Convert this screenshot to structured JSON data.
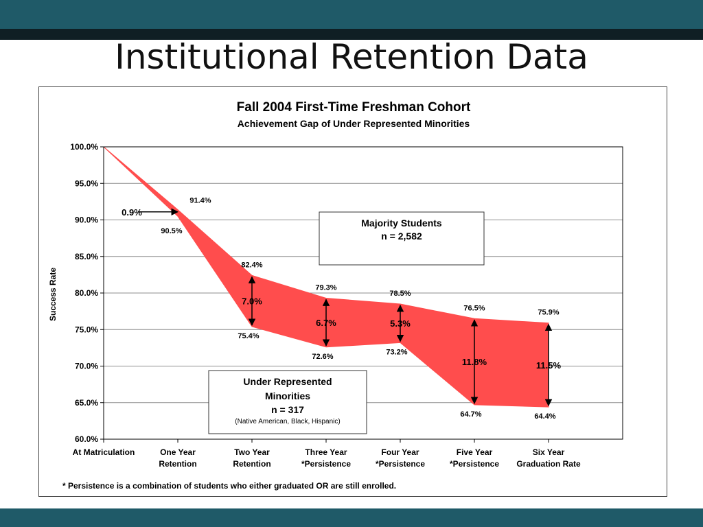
{
  "slide": {
    "title": "Institutional Retention Data",
    "colors": {
      "band": "#1f5a68",
      "rule": "#0f1f24",
      "gap_fill": "#ff4d4d"
    }
  },
  "chart_data": {
    "type": "area",
    "title": "Fall 2004 First-Time Freshman Cohort",
    "subtitle": "Achievement Gap of Under Represented Minorities",
    "ylabel": "Success Rate",
    "xlabel": "",
    "ylim": [
      60,
      100
    ],
    "y_ticks": [
      "60.0%",
      "65.0%",
      "70.0%",
      "75.0%",
      "80.0%",
      "85.0%",
      "90.0%",
      "95.0%",
      "100.0%"
    ],
    "categories": [
      [
        "At Matriculation",
        ""
      ],
      [
        "One Year",
        "Retention"
      ],
      [
        "Two Year",
        "Retention"
      ],
      [
        "Three Year",
        "*Persistence"
      ],
      [
        "Four Year",
        "*Persistence"
      ],
      [
        "Five Year",
        "*Persistence"
      ],
      [
        "Six Year",
        "Graduation Rate"
      ]
    ],
    "series": [
      {
        "values": [
          100.0,
          91.4,
          82.4,
          79.3,
          78.5,
          76.5,
          75.9
        ],
        "labels": [
          "",
          "91.4%",
          "82.4%",
          "79.3%",
          "78.5%",
          "76.5%",
          "75.9%"
        ]
      },
      {
        "values": [
          100.0,
          90.5,
          75.4,
          72.6,
          73.2,
          64.7,
          64.4
        ],
        "labels": [
          "",
          "90.5%",
          "75.4%",
          "72.6%",
          "73.2%",
          "64.7%",
          "64.4%"
        ]
      }
    ],
    "gaps": [
      "",
      "0.9%",
      "7.0%",
      "6.7%",
      "5.3%",
      "11.8%",
      "11.5%"
    ],
    "legend_majority": {
      "line1": "Majority Students",
      "line2": "n = 2,582"
    },
    "legend_urm": {
      "line1": "Under Represented",
      "line2": "Minorities",
      "line3": "n = 317",
      "line4": "(Native American, Black, Hispanic)"
    },
    "footnote": "* Persistence is a combination of students who either graduated OR are still enrolled.",
    "grid": true,
    "fill_color": "#ff4d4d"
  }
}
